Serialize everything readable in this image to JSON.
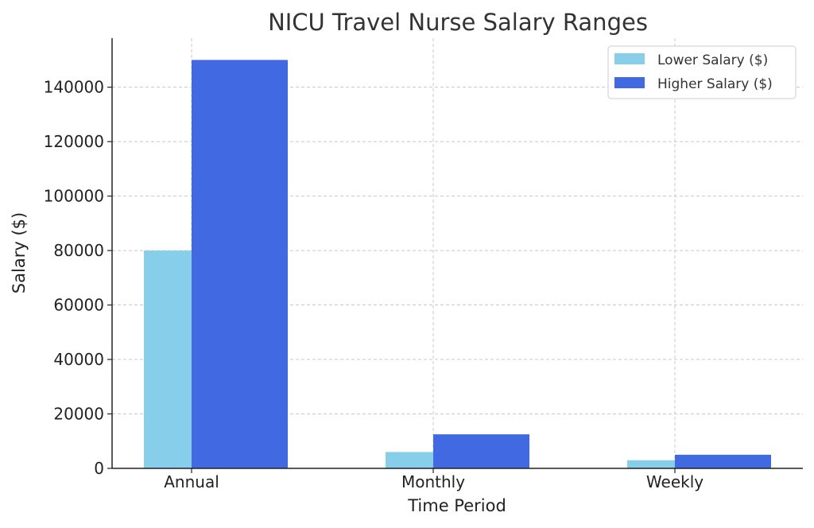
{
  "chart_data": {
    "type": "bar",
    "title": "NICU Travel Nurse Salary Ranges",
    "xlabel": "Time Period",
    "ylabel": "Salary ($)",
    "categories": [
      "Annual",
      "Monthly",
      "Weekly"
    ],
    "series": [
      {
        "name": "Lower Salary ($)",
        "values": [
          80000,
          6000,
          3000
        ],
        "color": "#87CEEB"
      },
      {
        "name": "Higher Salary ($)",
        "values": [
          150000,
          12500,
          5000
        ],
        "color": "#4169E1"
      }
    ],
    "ylim": [
      0,
      158000
    ],
    "yticks": [
      "0",
      "20000",
      "40000",
      "60000",
      "80000",
      "100000",
      "120000",
      "140000"
    ],
    "grid": true,
    "legend_position": "top-right"
  }
}
